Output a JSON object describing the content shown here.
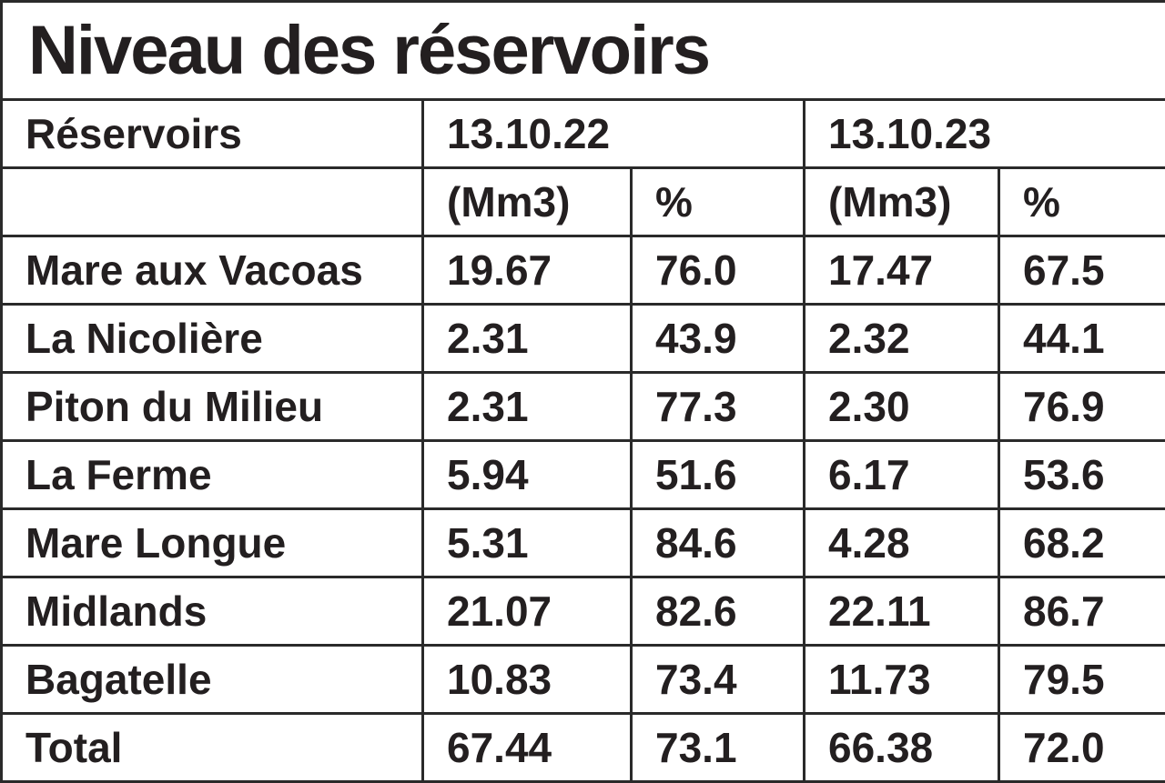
{
  "title": "Niveau des réservoirs",
  "header": {
    "label": "Réservoirs",
    "dates": [
      "13.10.22",
      "13.10.23"
    ],
    "units": [
      "(Mm3)",
      "%",
      "(Mm3)",
      "%"
    ]
  },
  "rows": [
    [
      "Mare aux Vacoas",
      "19.67",
      "76.0",
      "17.47",
      "67.5"
    ],
    [
      "La Nicolière",
      "2.31",
      "43.9",
      "2.32",
      "44.1"
    ],
    [
      "Piton du Milieu",
      "2.31",
      "77.3",
      "2.30",
      "76.9"
    ],
    [
      "La Ferme",
      "5.94",
      "51.6",
      "6.17",
      "53.6"
    ],
    [
      "Mare Longue",
      "5.31",
      "84.6",
      "4.28",
      "68.2"
    ],
    [
      "Midlands",
      "21.07",
      "82.6",
      "22.11",
      "86.7"
    ],
    [
      "Bagatelle",
      "10.83",
      "73.4",
      "11.73",
      "79.5"
    ],
    [
      "Total",
      "67.44",
      "73.1",
      "66.38",
      "72.0"
    ]
  ]
}
